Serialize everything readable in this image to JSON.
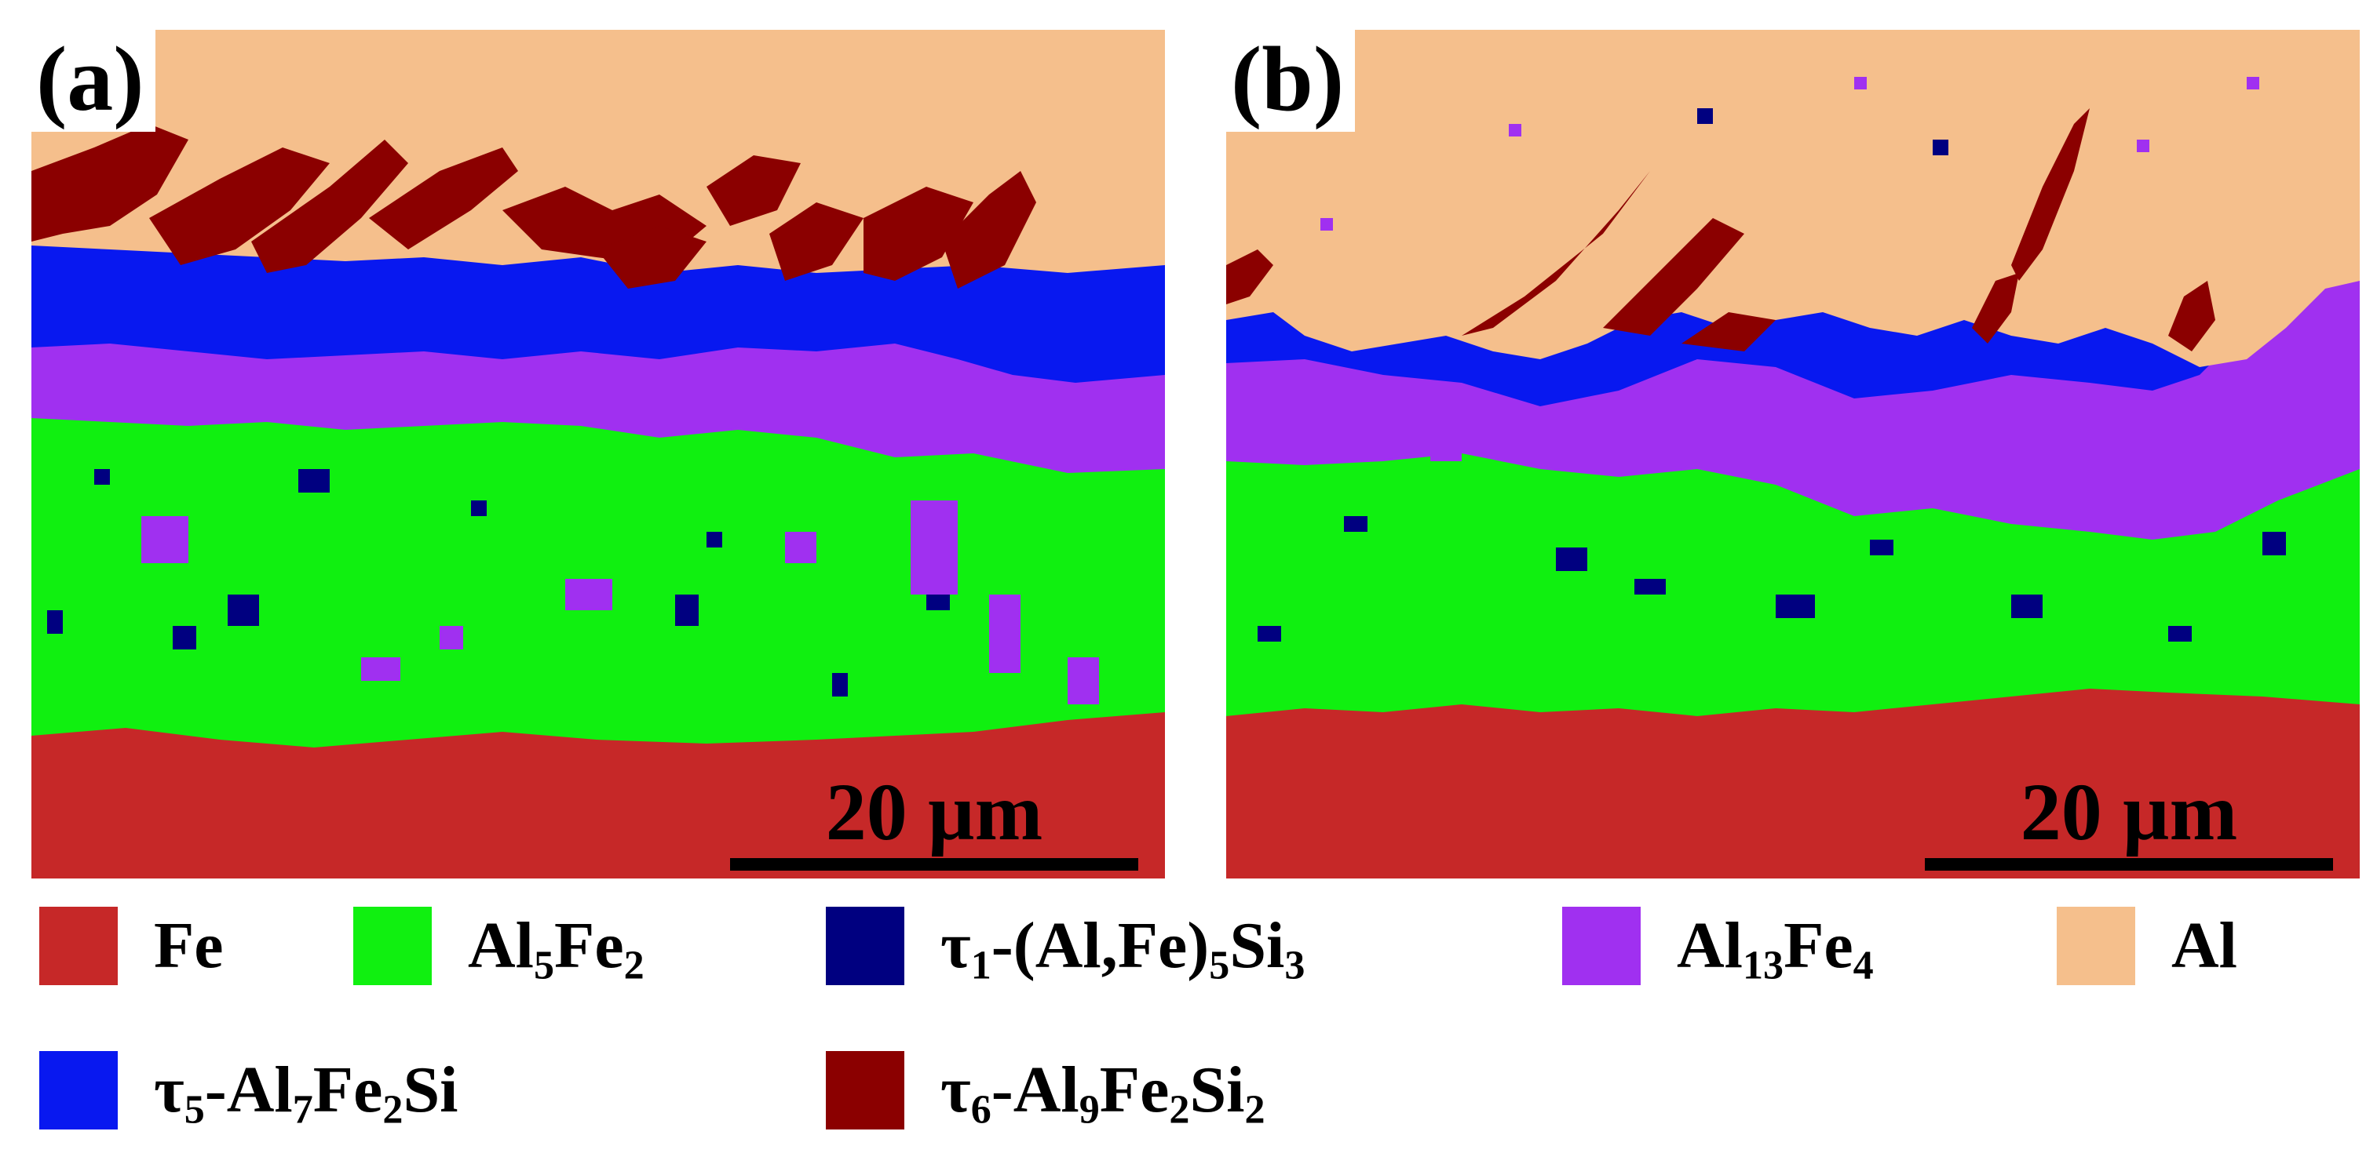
{
  "panels": [
    {
      "label": "(a)",
      "scale_bar": "20 µm"
    },
    {
      "label": "(b)",
      "scale_bar": "20 µm"
    }
  ],
  "legend": [
    {
      "text": "Fe",
      "color": "#c62828",
      "id": "fe"
    },
    {
      "text": "Al5Fe2",
      "color": "#10f010",
      "id": "al5fe2"
    },
    {
      "text": "τ1-(Al,Fe)5Si3",
      "color": "#000080",
      "id": "tau1"
    },
    {
      "text": "Al13Fe4",
      "color": "#a030f0",
      "id": "al13fe4"
    },
    {
      "text": "Al",
      "color": "#f5bf8c",
      "id": "al"
    },
    {
      "text": "τ5-Al7Fe2Si",
      "color": "#0818f0",
      "id": "tau5"
    },
    {
      "text": "τ6-Al9Fe2Si2",
      "color": "#8b0000",
      "id": "tau6"
    }
  ]
}
